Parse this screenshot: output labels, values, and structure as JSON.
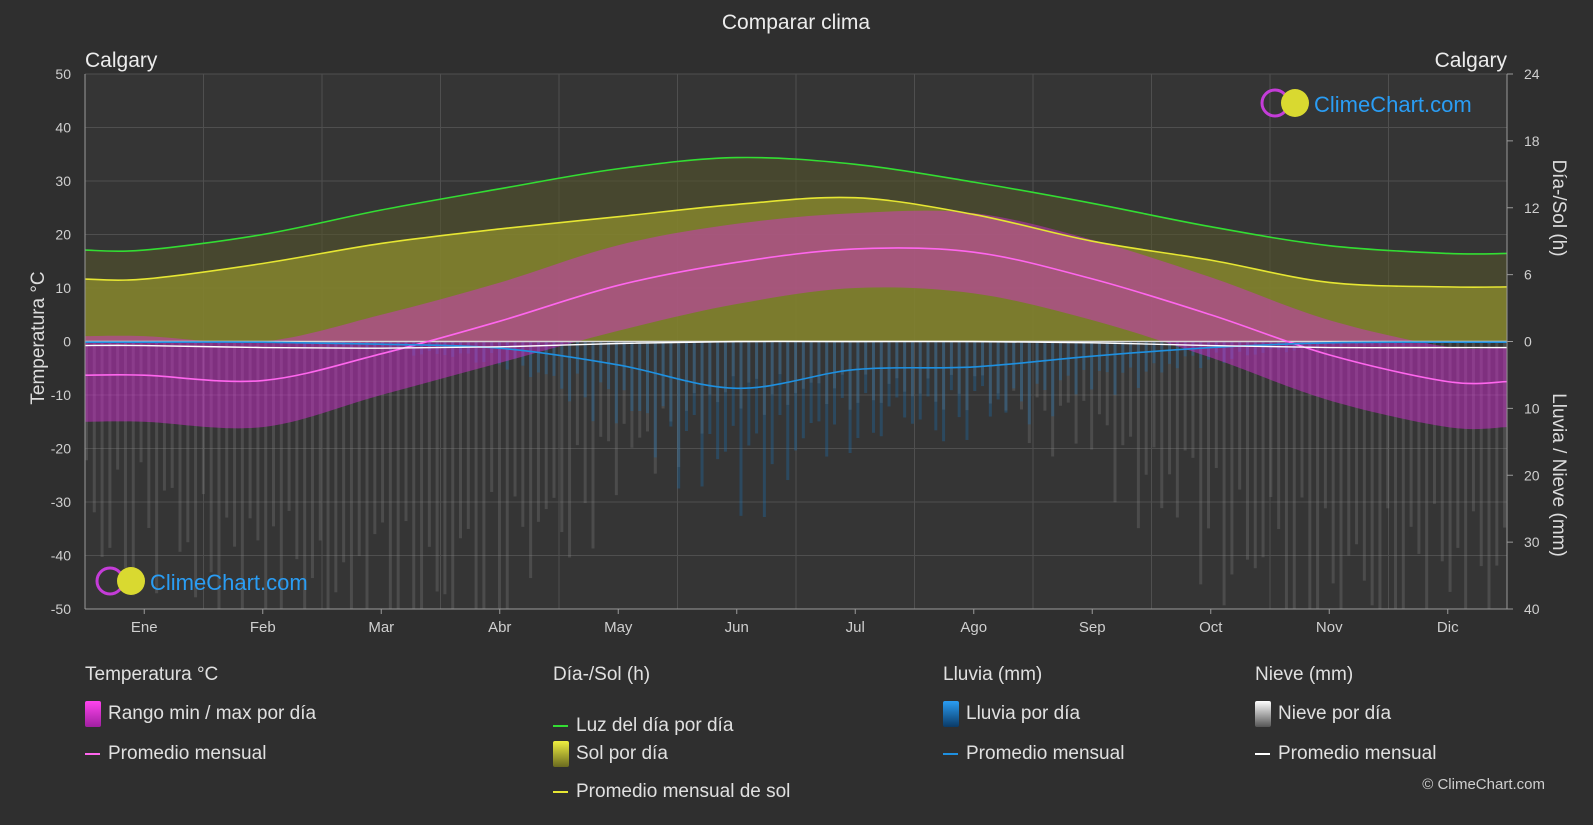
{
  "chart_title": "Comparar clima",
  "location_left": "Calgary",
  "location_right": "Calgary",
  "brand": "ClimeChart.com",
  "copyright": "© ClimeChart.com",
  "colors": {
    "background": "#2f2f2f",
    "temp_avg": "#ff66ee",
    "temp_range": "#d92bd9",
    "daylight": "#33dd33",
    "sunshine_avg": "#e6e633",
    "sunshine_fill": "#9a9a2c",
    "rain": "#1e90e0",
    "snow": "#ffffff",
    "brand_blue": "#2a9df4"
  },
  "chart_data": {
    "type": "line",
    "title": "Comparar clima",
    "months": [
      "Ene",
      "Feb",
      "Mar",
      "Abr",
      "May",
      "Jun",
      "Jul",
      "Ago",
      "Sep",
      "Oct",
      "Nov",
      "Dic"
    ],
    "y_left": {
      "label": "Temperatura °C",
      "min": -50,
      "max": 50,
      "ticks": [
        50,
        40,
        30,
        20,
        10,
        0,
        -10,
        -20,
        -30,
        -40,
        -50
      ]
    },
    "y_right_top": {
      "label": "Día-/Sol (h)",
      "min": 0,
      "max": 24,
      "ticks": [
        24,
        18,
        12,
        6,
        0
      ]
    },
    "y_right_bottom": {
      "label": "Lluvia / Nieve (mm)",
      "min": 0,
      "max": 40,
      "ticks": [
        0,
        10,
        20,
        30,
        40
      ]
    },
    "grid": true,
    "series": [
      {
        "name": "Luz del día por día",
        "unit": "h",
        "values": [
          8.2,
          9.6,
          11.8,
          13.7,
          15.5,
          16.5,
          15.9,
          14.3,
          12.4,
          10.3,
          8.6,
          7.9
        ]
      },
      {
        "name": "Promedio mensual de sol",
        "unit": "h",
        "values": [
          5.6,
          7.0,
          8.8,
          10.1,
          11.2,
          12.3,
          12.9,
          11.4,
          9.0,
          7.3,
          5.3,
          4.9
        ]
      },
      {
        "name": "Promedio mensual",
        "group": "Temperatura °C",
        "unit": "°C",
        "values": [
          -6.3,
          -7.3,
          -2.3,
          3.8,
          10.5,
          14.8,
          17.3,
          16.7,
          11.7,
          5.0,
          -2.5,
          -7.5
        ]
      },
      {
        "name": "Promedio mensual",
        "group": "Lluvia (mm)",
        "unit": "mm",
        "values": [
          0.1,
          0.1,
          0.4,
          1.0,
          3.5,
          7.0,
          4.2,
          3.8,
          2.2,
          0.9,
          0.2,
          0.1
        ]
      },
      {
        "name": "Promedio mensual",
        "group": "Nieve (mm)",
        "unit": "mm",
        "values": [
          0.6,
          0.9,
          1.0,
          0.8,
          0.3,
          0.0,
          0.0,
          0.0,
          0.2,
          0.6,
          0.9,
          0.9
        ]
      }
    ],
    "temp_range": {
      "name": "Rango min / max por día",
      "min": [
        -15,
        -16,
        -10,
        -4,
        2,
        7,
        10,
        9,
        4,
        -3,
        -11,
        -16
      ],
      "max": [
        1,
        0,
        5,
        11,
        18,
        22,
        24,
        24,
        19,
        12,
        4,
        -1
      ]
    }
  },
  "legend": {
    "temperature": {
      "heading": "Temperatura °C",
      "range": "Rango min / max por día",
      "avg": "Promedio mensual"
    },
    "sun": {
      "heading": "Día-/Sol (h)",
      "daylight": "Luz del día por día",
      "sun": "Sol por día",
      "sun_avg": "Promedio mensual de sol"
    },
    "rain": {
      "heading": "Lluvia (mm)",
      "daily": "Lluvia por día",
      "avg": "Promedio mensual"
    },
    "snow": {
      "heading": "Nieve (mm)",
      "daily": "Nieve por día",
      "avg": "Promedio mensual"
    }
  }
}
